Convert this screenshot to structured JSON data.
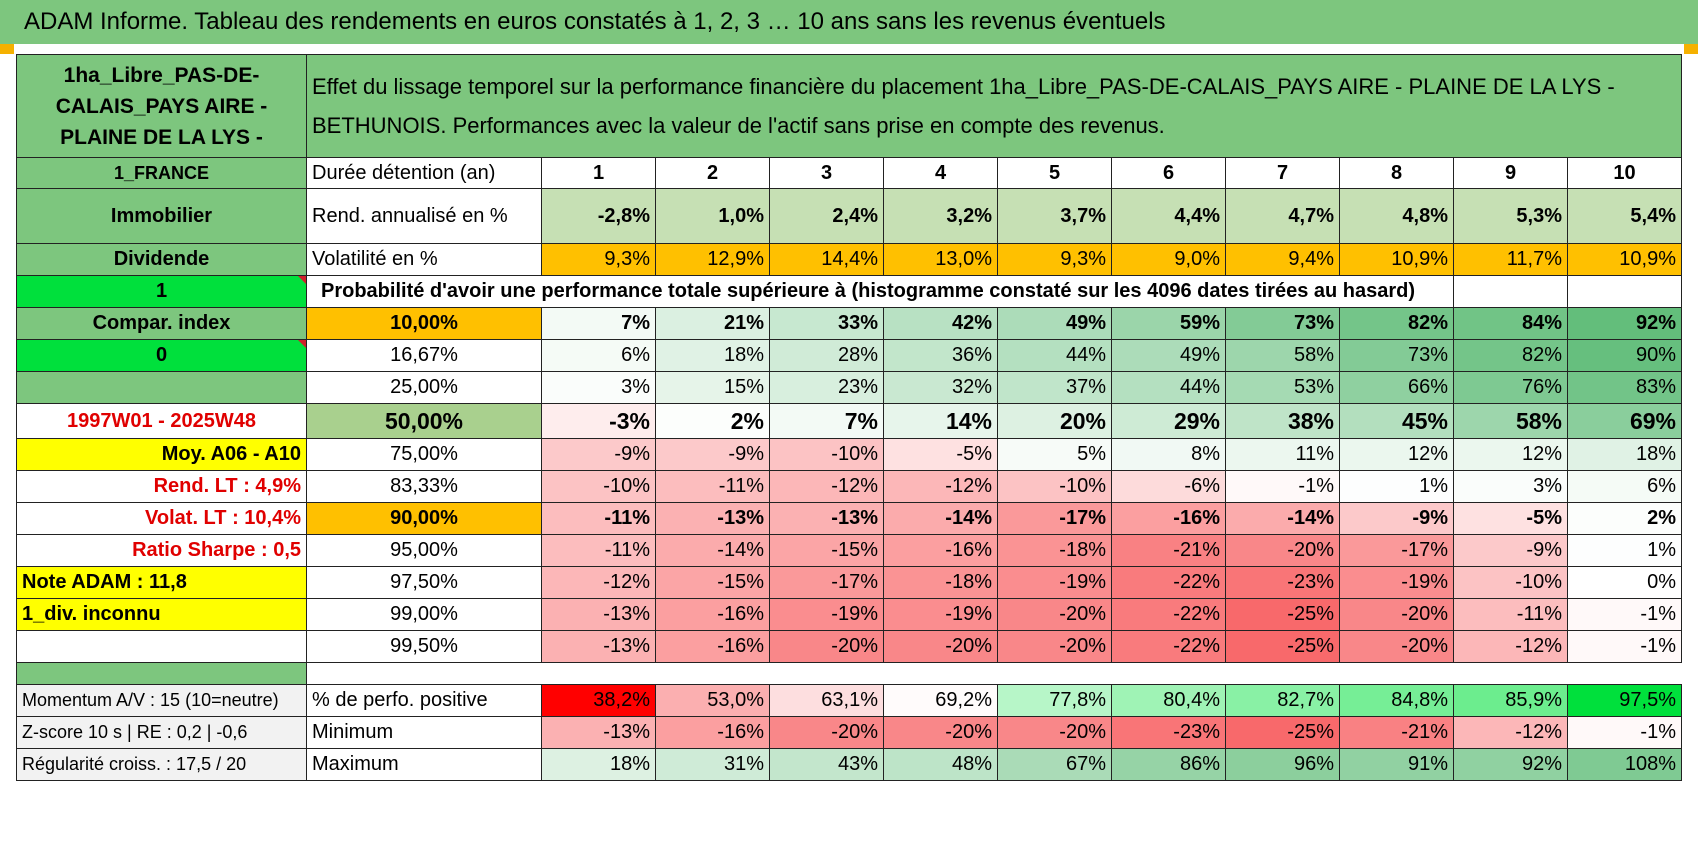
{
  "title": "ADAM Informe. Tableau des rendements en euros constatés à 1, 2, 3 … 10 ans sans les revenus éventuels",
  "header": {
    "asset_name": "1ha_Libre_PAS-DE-CALAIS_PAYS AIRE - PLAINE DE LA LYS -",
    "description": "Effet du lissage temporel sur la performance financière du placement 1ha_Libre_PAS-DE-CALAIS_PAYS AIRE - PLAINE DE LA LYS - BETHUNOIS. Performances avec la valeur de l'actif sans prise en compte des revenus."
  },
  "left_labels": {
    "country": "1_FRANCE",
    "category": "Immobilier",
    "type": "Dividende",
    "flag1": "1",
    "compar": "Compar. index",
    "flag0": "0",
    "period": "1997W01 - 2025W48",
    "moy": "Moy. A06 - A10",
    "rend_lt": "Rend. LT :    4,9%",
    "volat_lt": "Volat. LT :    10,4%",
    "sharpe": "Ratio Sharpe :     0,5",
    "note": "Note ADAM : 11,8",
    "div": "1_div. inconnu",
    "momentum": "Momentum A/V : 15 (10=neutre)",
    "zscore": "Z-score 10 s | RE : 0,2 | -0,6",
    "regularite": "Régularité croiss. : 17,5 / 20"
  },
  "row_labels": {
    "duration": "Durée détention (an)",
    "rend": "Rend. annualisé en %",
    "vol": "Volatilité en %",
    "prob_title": "Probabilité d'avoir une performance totale supérieure à (histogramme constaté sur les 4096 dates tirées au hasard)",
    "pct_pos": "% de perfo. positive",
    "min": "Minimum",
    "max": "Maximum"
  },
  "years": [
    "1",
    "2",
    "3",
    "4",
    "5",
    "6",
    "7",
    "8",
    "9",
    "10"
  ],
  "rend_annualise": [
    "-2,8%",
    "1,0%",
    "2,4%",
    "3,2%",
    "3,7%",
    "4,4%",
    "4,7%",
    "4,8%",
    "5,3%",
    "5,4%"
  ],
  "volatilite": [
    "9,3%",
    "12,9%",
    "14,4%",
    "13,0%",
    "9,3%",
    "9,0%",
    "9,4%",
    "10,9%",
    "11,7%",
    "10,9%"
  ],
  "probability_rows": [
    {
      "p": "10,00%",
      "values": [
        "7%",
        "21%",
        "33%",
        "42%",
        "49%",
        "59%",
        "73%",
        "82%",
        "84%",
        "92%"
      ]
    },
    {
      "p": "16,67%",
      "values": [
        "6%",
        "18%",
        "28%",
        "36%",
        "44%",
        "49%",
        "58%",
        "73%",
        "82%",
        "90%"
      ]
    },
    {
      "p": "25,00%",
      "values": [
        "3%",
        "15%",
        "23%",
        "32%",
        "37%",
        "44%",
        "53%",
        "66%",
        "76%",
        "83%"
      ]
    },
    {
      "p": "50,00%",
      "values": [
        "-3%",
        "2%",
        "7%",
        "14%",
        "20%",
        "29%",
        "38%",
        "45%",
        "58%",
        "69%"
      ]
    },
    {
      "p": "75,00%",
      "values": [
        "-9%",
        "-9%",
        "-10%",
        "-5%",
        "5%",
        "8%",
        "11%",
        "12%",
        "12%",
        "18%"
      ]
    },
    {
      "p": "83,33%",
      "values": [
        "-10%",
        "-11%",
        "-12%",
        "-12%",
        "-10%",
        "-6%",
        "-1%",
        "1%",
        "3%",
        "6%"
      ]
    },
    {
      "p": "90,00%",
      "values": [
        "-11%",
        "-13%",
        "-13%",
        "-14%",
        "-17%",
        "-16%",
        "-14%",
        "-9%",
        "-5%",
        "2%"
      ]
    },
    {
      "p": "95,00%",
      "values": [
        "-11%",
        "-14%",
        "-15%",
        "-16%",
        "-18%",
        "-21%",
        "-20%",
        "-17%",
        "-9%",
        "1%"
      ]
    },
    {
      "p": "97,50%",
      "values": [
        "-12%",
        "-15%",
        "-17%",
        "-18%",
        "-19%",
        "-22%",
        "-23%",
        "-19%",
        "-10%",
        "0%"
      ]
    },
    {
      "p": "99,00%",
      "values": [
        "-13%",
        "-16%",
        "-19%",
        "-19%",
        "-20%",
        "-22%",
        "-25%",
        "-20%",
        "-11%",
        "-1%"
      ]
    },
    {
      "p": "99,50%",
      "values": [
        "-13%",
        "-16%",
        "-20%",
        "-20%",
        "-20%",
        "-22%",
        "-25%",
        "-20%",
        "-12%",
        "-1%"
      ]
    }
  ],
  "pct_positive": [
    "38,2%",
    "53,0%",
    "63,1%",
    "69,2%",
    "77,8%",
    "80,4%",
    "82,7%",
    "84,8%",
    "85,9%",
    "97,5%"
  ],
  "minimum": [
    "-13%",
    "-16%",
    "-20%",
    "-20%",
    "-20%",
    "-23%",
    "-25%",
    "-21%",
    "-12%",
    "-1%"
  ],
  "maximum": [
    "18%",
    "31%",
    "43%",
    "48%",
    "67%",
    "86%",
    "96%",
    "91%",
    "92%",
    "108%"
  ],
  "colors": {
    "header_green": "#7dc67e",
    "bright_green": "#00e03c",
    "orange": "#ffc000",
    "yellow": "#ffff00",
    "light_green": "#c6e0b4",
    "label_red": "#e00000",
    "min_red": "#f8696b",
    "max_green": "#63be7b"
  }
}
